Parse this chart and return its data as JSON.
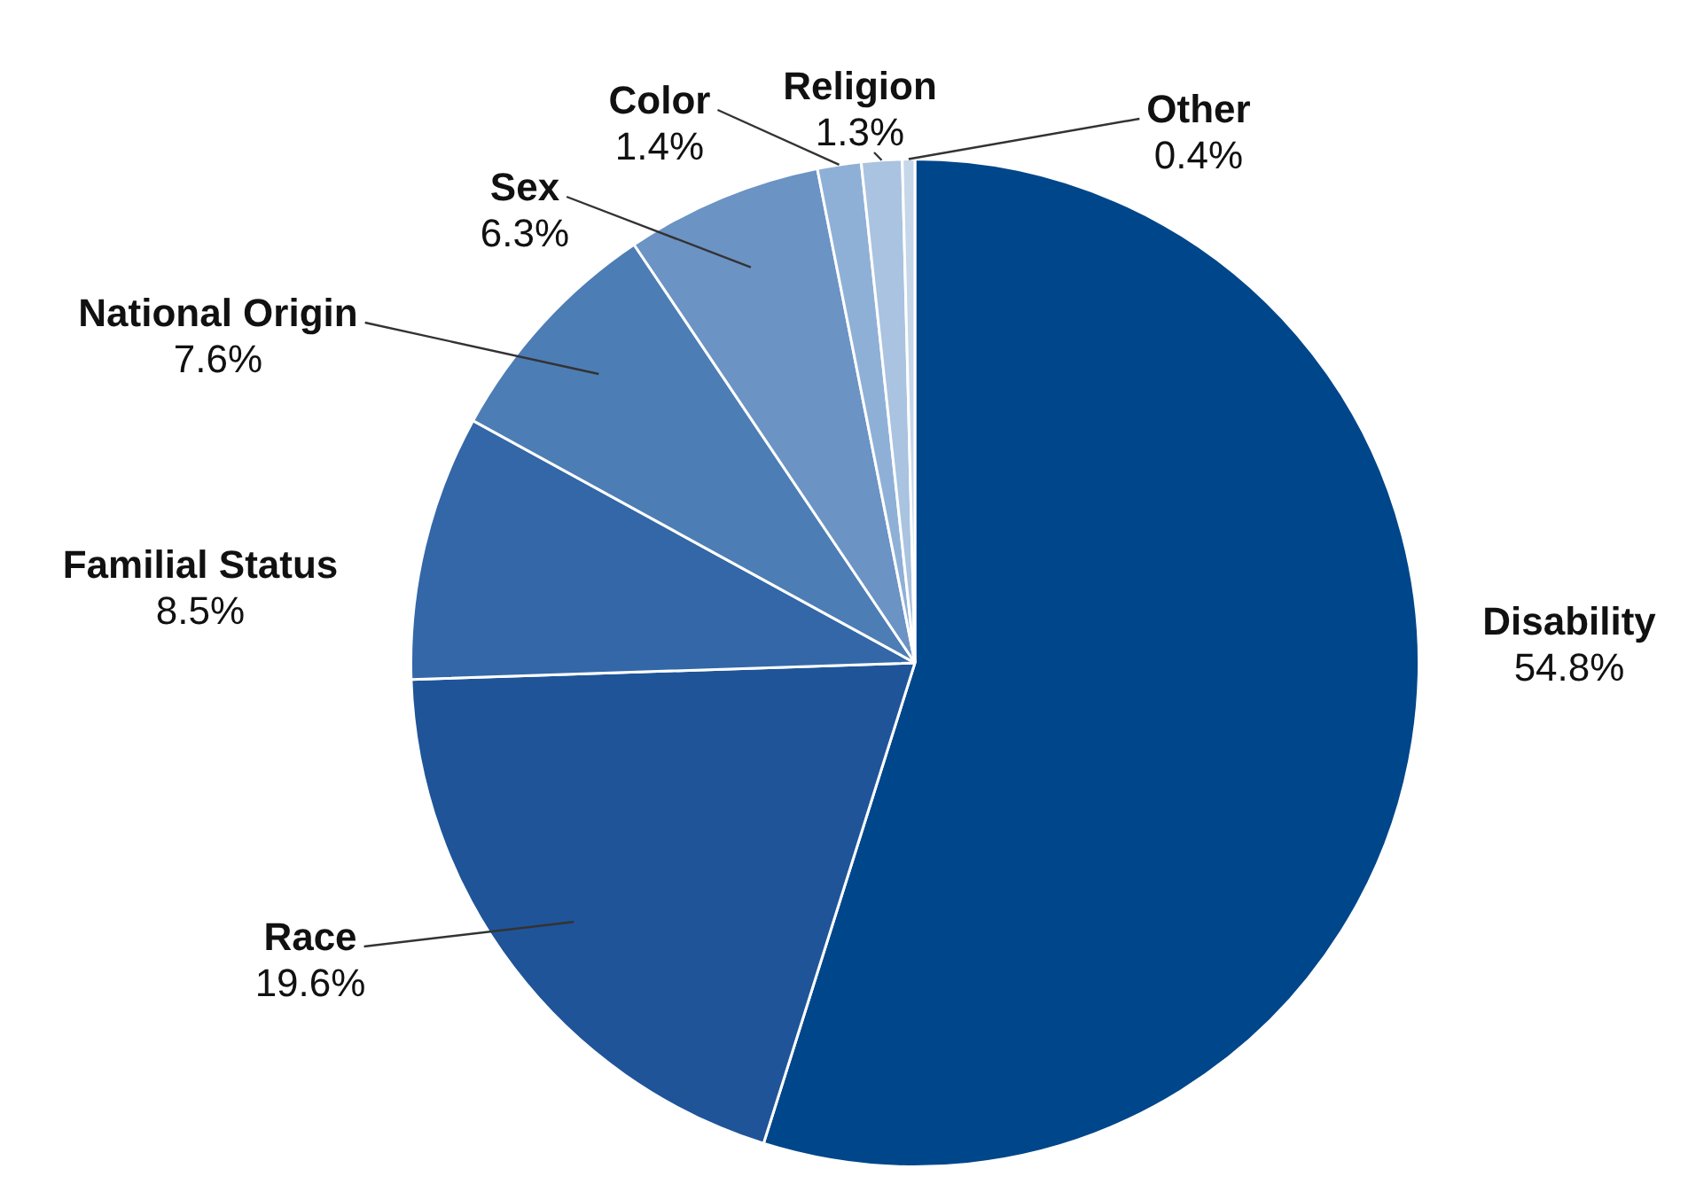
{
  "chart_data": {
    "type": "pie",
    "categories": [
      "Disability",
      "Race",
      "Familial Status",
      "National Origin",
      "Sex",
      "Color",
      "Religion",
      "Other"
    ],
    "values": [
      54.8,
      19.6,
      8.5,
      7.6,
      6.3,
      1.4,
      1.3,
      0.4
    ],
    "value_labels": [
      "54.8%",
      "19.6%",
      "8.5%",
      "7.6%",
      "6.3%",
      "1.4%",
      "1.3%",
      "0.4%"
    ],
    "colors": [
      "#00468b",
      "#1f5499",
      "#3367a8",
      "#4d7db5",
      "#6b93c4",
      "#8fb0d6",
      "#a9c3e0",
      "#c6d7ea"
    ],
    "legend": false
  }
}
